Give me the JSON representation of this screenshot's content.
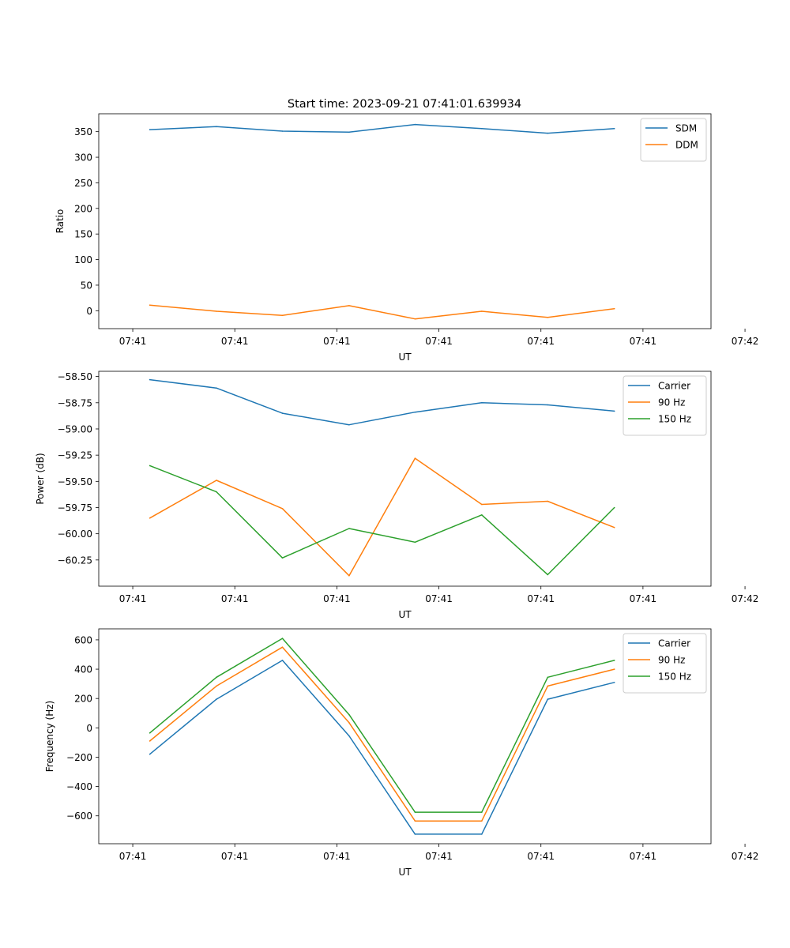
{
  "figure_title": "Start time: 2023-09-21 07:41:01.639934",
  "colors": {
    "blue": "#1f77b4",
    "orange": "#ff7f0e",
    "green": "#2ca02c",
    "axis": "#000000",
    "legend_border": "#cccccc"
  },
  "chart_data": [
    {
      "type": "line",
      "title": "Start time: 2023-09-21 07:41:01.639934",
      "xlabel": "UT",
      "ylabel": "Ratio",
      "xlim": [
        -0.5,
        8.5
      ],
      "x": [
        0.25,
        1.23,
        2.2,
        3.18,
        4.15,
        5.13,
        6.1,
        7.08
      ],
      "x_ticks": [
        0,
        1.5,
        3,
        4.5,
        6,
        7.5,
        9
      ],
      "x_tick_labels": [
        "07:41",
        "07:41",
        "07:41",
        "07:41",
        "07:41",
        "07:41",
        "07:42"
      ],
      "ylim": [
        -35,
        385
      ],
      "y_ticks": [
        0,
        50,
        100,
        150,
        200,
        250,
        300,
        350
      ],
      "y_tick_labels": [
        "0",
        "50",
        "100",
        "150",
        "200",
        "250",
        "300",
        "350"
      ],
      "legend_position": "top-right",
      "series": [
        {
          "name": "SDM",
          "color": "#1f77b4",
          "values": [
            354,
            360,
            351,
            349,
            364,
            356,
            347,
            356
          ]
        },
        {
          "name": "DDM",
          "color": "#ff7f0e",
          "values": [
            11,
            -1,
            -9,
            10,
            -16,
            -1,
            -13,
            4
          ]
        }
      ]
    },
    {
      "type": "line",
      "title": "",
      "xlabel": "UT",
      "ylabel": "Power (dB)",
      "xlim": [
        -0.5,
        8.5
      ],
      "x": [
        0.25,
        1.23,
        2.2,
        3.18,
        4.15,
        5.13,
        6.1,
        7.08
      ],
      "x_ticks": [
        0,
        1.5,
        3,
        4.5,
        6,
        7.5,
        9
      ],
      "x_tick_labels": [
        "07:41",
        "07:41",
        "07:41",
        "07:41",
        "07:41",
        "07:41",
        "07:42"
      ],
      "ylim": [
        -60.5,
        -58.45
      ],
      "y_ticks": [
        -60.25,
        -60.0,
        -59.75,
        -59.5,
        -59.25,
        -59.0,
        -58.75,
        -58.5
      ],
      "y_tick_labels": [
        "−60.25",
        "−60.00",
        "−59.75",
        "−59.50",
        "−59.25",
        "−59.00",
        "−58.75",
        "−58.50"
      ],
      "legend_position": "top-right",
      "series": [
        {
          "name": "Carrier",
          "color": "#1f77b4",
          "values": [
            -58.53,
            -58.61,
            -58.85,
            -58.96,
            -58.84,
            -58.75,
            -58.77,
            -58.83
          ]
        },
        {
          "name": "90 Hz",
          "color": "#ff7f0e",
          "values": [
            -59.85,
            -59.49,
            -59.76,
            -60.4,
            -59.28,
            -59.72,
            -59.69,
            -59.94
          ]
        },
        {
          "name": "150 Hz",
          "color": "#2ca02c",
          "values": [
            -59.35,
            -59.6,
            -60.23,
            -59.95,
            -60.08,
            -59.82,
            -60.39,
            -59.75
          ]
        }
      ]
    },
    {
      "type": "line",
      "title": "",
      "xlabel": "UT",
      "ylabel": "Frequency (Hz)",
      "xlim": [
        -0.5,
        8.5
      ],
      "x": [
        0.25,
        1.23,
        2.2,
        3.18,
        4.15,
        5.13,
        6.1,
        7.08
      ],
      "x_ticks": [
        0,
        1.5,
        3,
        4.5,
        6,
        7.5,
        9
      ],
      "x_tick_labels": [
        "07:41",
        "07:41",
        "07:41",
        "07:41",
        "07:41",
        "07:41",
        "07:42"
      ],
      "ylim": [
        -790,
        675
      ],
      "y_ticks": [
        -600,
        -400,
        -200,
        0,
        200,
        400,
        600
      ],
      "y_tick_labels": [
        "−600",
        "−400",
        "−200",
        "0",
        "200",
        "400",
        "600"
      ],
      "legend_position": "top-right",
      "series": [
        {
          "name": "Carrier",
          "color": "#1f77b4",
          "values": [
            -180,
            195,
            460,
            -55,
            -725,
            -725,
            195,
            310
          ]
        },
        {
          "name": "90 Hz",
          "color": "#ff7f0e",
          "values": [
            -90,
            285,
            550,
            35,
            -635,
            -635,
            285,
            400
          ]
        },
        {
          "name": "150 Hz",
          "color": "#2ca02c",
          "values": [
            -35,
            345,
            610,
            90,
            -575,
            -575,
            345,
            460
          ]
        }
      ]
    }
  ]
}
